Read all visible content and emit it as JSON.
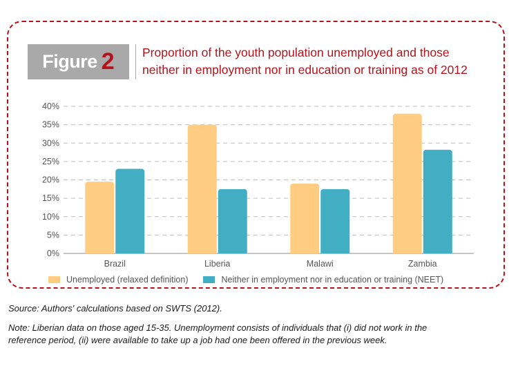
{
  "figure": {
    "label_word": "Figure",
    "label_number": "2"
  },
  "title_lines": [
    "Proportion of the youth population unemployed and those",
    "neither in employment nor in education or training as of 2012"
  ],
  "colors": {
    "accent": "#b5121b",
    "tab": "#aaa9a9",
    "unemployed": "#fecd82",
    "neet": "#41aec4",
    "grid": "#bdbdbd"
  },
  "chart_data": {
    "type": "bar",
    "title": "Proportion of the youth population unemployed and those neither in employment nor in education or training as of 2012",
    "categories": [
      "Brazil",
      "Liberia",
      "Malawi",
      "Zambia"
    ],
    "series": [
      {
        "name": "Unemployed (relaxed definition)",
        "values": [
          19.5,
          35.0,
          19.0,
          38.0
        ],
        "color": "#fecd82"
      },
      {
        "name": "Neither in employment nor in education or training (NEET)",
        "values": [
          23.0,
          17.5,
          17.5,
          28.2
        ],
        "color": "#41aec4"
      }
    ],
    "yticks": [
      "0%",
      "5%",
      "10%",
      "15%",
      "20%",
      "25%",
      "30%",
      "35%",
      "40%"
    ],
    "ylim": [
      0,
      40
    ],
    "grid": "dashed-horizontal",
    "legend": "bottom"
  },
  "source_text": "Source: Authors' calculations based on SWTS (2012).",
  "note_lines": [
    "Note: Liberian data on those aged 15-35. Unemployment consists of individuals that (i) did not work in the",
    "reference period, (ii) were available to take up a job had one been offered in the previous week."
  ]
}
